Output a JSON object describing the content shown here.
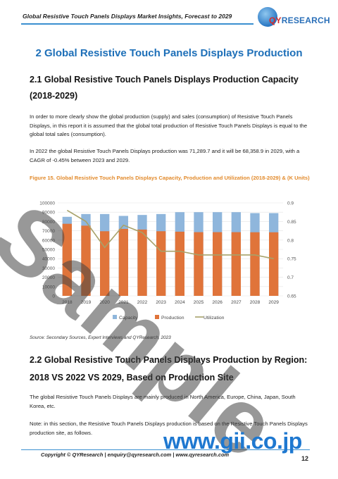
{
  "header": {
    "title": "Global Resistive Touch Panels Displays Market Insights, Forecast to 2029",
    "logo_text_q": "QY",
    "logo_text_rest": "RESEARCH"
  },
  "section1": {
    "heading": "2  Global Resistive Touch Panels Displays Production"
  },
  "section21": {
    "heading_line1": "2.1  Global Resistive Touch Panels Displays Production Capacity",
    "heading_line2": "(2018-2029)",
    "para1": "In order to more clearly show the global production (supply) and sales (consumption) of Resistive Touch Panels Displays, in this report it is assumed that the global total production of Resistive Touch Panels Displays is equal to the global total sales (consumption).",
    "para2": "In 2022 the global Resistive Touch Panels Displays production was 71,289.7 and it will be 68,358.9 in 2029, with a CAGR of -0.45% between 2023 and 2029.",
    "figure_caption": "Figure 15.  Global Resistive Touch Panels Displays Capacity, Production and Utilization (2018-2029) & (K Units)",
    "source": "Source: Secondary Sources, Expert Interviews and QYResearch, 2023"
  },
  "section22": {
    "heading_line1": "2.2  Global Resistive Touch Panels Displays Production by Region:",
    "heading_line2": "2018 VS 2022 VS 2029, Based on Production Site",
    "para1": "The global Resistive Touch Panels Displays are mainly produced in North America, Europe, China, Japan, South Korea, etc.",
    "para2": "Note: in this section, the Resistive Touch Panels Displays production is based on the Resistive Touch Panels Displays production site, as follows."
  },
  "footer": {
    "text": "Copyright © QYResearch | enquiry@qyresearch.com | www.qyresearch.com",
    "page_number": "12"
  },
  "watermark": {
    "sample": "Sample",
    "url": "www.gii.co.jp"
  },
  "chart_data": {
    "type": "bar",
    "categories": [
      "2018",
      "2019",
      "2020",
      "2021",
      "2022",
      "2023",
      "2024",
      "2025",
      "2026",
      "2027",
      "2028",
      "2029"
    ],
    "series": [
      {
        "name": "Capacity",
        "kind": "bar",
        "color": "#8fb6dc",
        "values": [
          85000,
          88000,
          88000,
          86000,
          87000,
          88000,
          90000,
          90000,
          90000,
          90000,
          89000,
          89000
        ]
      },
      {
        "name": "Production",
        "kind": "bar",
        "color": "#e0743a",
        "values": [
          77500,
          75500,
          69500,
          72000,
          71290,
          69500,
          69000,
          68500,
          68500,
          68500,
          68400,
          68359
        ]
      },
      {
        "name": "Utilization",
        "kind": "line",
        "color": "#a7a26a",
        "axis": "right",
        "values": [
          0.88,
          0.85,
          0.78,
          0.84,
          0.82,
          0.77,
          0.77,
          0.76,
          0.76,
          0.76,
          0.76,
          0.75
        ]
      }
    ],
    "y_left": {
      "min": 0,
      "max": 100000,
      "ticks": [
        "0",
        "10000",
        "20000",
        "30000",
        "40000",
        "50000",
        "60000",
        "70000",
        "80000",
        "90000",
        "100000"
      ]
    },
    "y_right": {
      "min": 0.65,
      "max": 0.9,
      "ticks": [
        "0.65",
        "0.7",
        "0.75",
        "0.8",
        "0.85",
        "0.9"
      ]
    },
    "legend": [
      "Capacity",
      "Production",
      "Utilization"
    ],
    "legend_position": "bottom",
    "grid": true
  }
}
